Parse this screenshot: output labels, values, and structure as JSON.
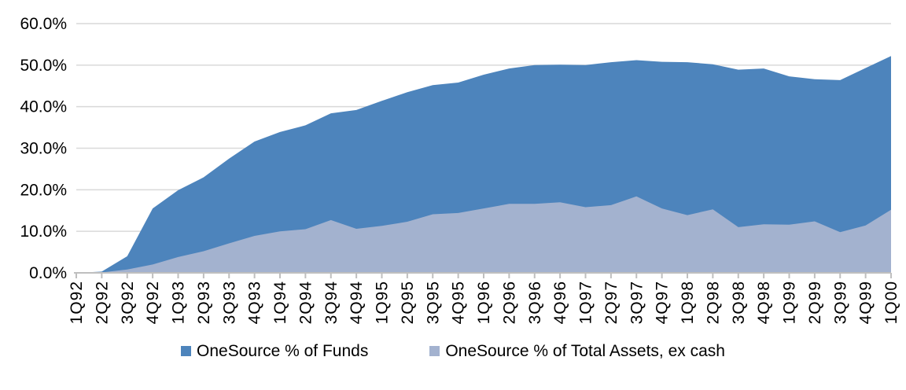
{
  "chart_data": {
    "type": "area",
    "title": "",
    "xlabel": "",
    "ylabel": "",
    "ylim": [
      0,
      60
    ],
    "y_tick_step": 10,
    "y_tick_labels": [
      "0.0%",
      "10.0%",
      "20.0%",
      "30.0%",
      "40.0%",
      "50.0%",
      "60.0%"
    ],
    "grid": true,
    "legend_position": "bottom-center",
    "categories": [
      "1Q92",
      "2Q92",
      "3Q92",
      "4Q92",
      "1Q93",
      "2Q93",
      "3Q93",
      "4Q93",
      "1Q94",
      "2Q94",
      "3Q94",
      "4Q94",
      "1Q95",
      "2Q95",
      "3Q95",
      "4Q95",
      "1Q96",
      "2Q96",
      "3Q96",
      "4Q96",
      "1Q97",
      "2Q97",
      "3Q97",
      "4Q97",
      "1Q98",
      "2Q98",
      "3Q98",
      "4Q98",
      "1Q99",
      "2Q99",
      "3Q99",
      "4Q99",
      "1Q00"
    ],
    "series": [
      {
        "name": "OneSource % of Funds",
        "color": "#4D84BC",
        "values": [
          0,
          0.3,
          4.0,
          15.5,
          19.9,
          23.0,
          27.5,
          31.6,
          33.9,
          35.5,
          38.4,
          39.2,
          41.4,
          43.5,
          45.2,
          45.8,
          47.7,
          49.2,
          50.0,
          50.1,
          50.0,
          50.7,
          51.2,
          50.8,
          50.7,
          50.2,
          48.9,
          49.2,
          47.3,
          46.6,
          46.4,
          49.3,
          52.2
        ]
      },
      {
        "name": "OneSource % of Total Assets, ex cash",
        "color": "#A3B2CF",
        "values": [
          0,
          0.1,
          0.8,
          2.0,
          3.8,
          5.2,
          7.1,
          8.9,
          10.0,
          10.5,
          12.7,
          10.6,
          11.3,
          12.3,
          14.1,
          14.4,
          15.5,
          16.6,
          16.6,
          17.0,
          15.8,
          16.3,
          18.4,
          15.5,
          13.9,
          15.3,
          11.0,
          11.7,
          11.6,
          12.4,
          9.8,
          11.4,
          15.2
        ]
      }
    ],
    "colors": {
      "gridline": "#D9D9D9",
      "axis": "#BFBFBF",
      "text": "#000000",
      "background": "#FFFFFF"
    }
  }
}
